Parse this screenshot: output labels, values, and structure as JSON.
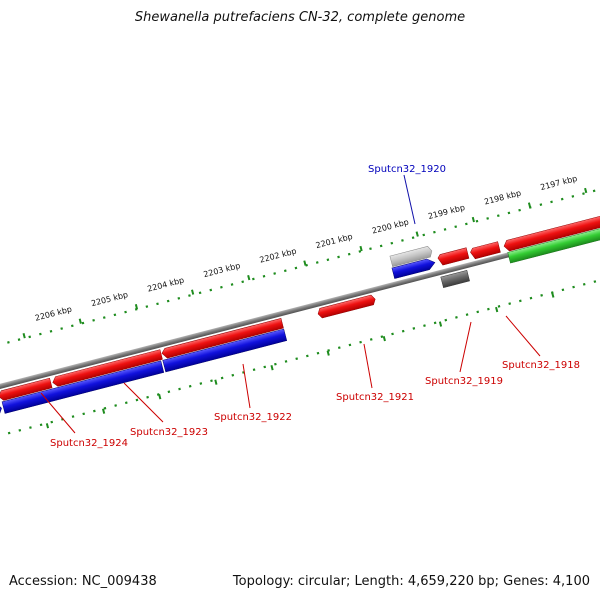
{
  "title": "Shewanella putrefaciens CN-32, complete genome",
  "footer": {
    "accession": "Accession: NC_009438",
    "summary": "Topology: circular; Length: 4,659,220 bp; Genes: 4,100"
  },
  "colors": {
    "backbone": "#7a7a7a",
    "ruler": "#1e8c1e",
    "forward_gene": "#ee1111",
    "reverse_gene": "#1111dd",
    "rna_gene": "#33cc33",
    "pseudo_gene_light": "#c8c8c8",
    "pseudo_gene_dark": "#666666",
    "label_red": "#cc0000",
    "label_blue": "#0000bb"
  },
  "ruler_labels": [
    "2197 kbp",
    "2198 kbp",
    "2199 kbp",
    "2200 kbp",
    "2201 kbp",
    "2202 kbp",
    "2203 kbp",
    "2204 kbp",
    "2205 kbp",
    "2206 kbp"
  ],
  "gene_labels": [
    {
      "text": "Sputcn32_1920",
      "color": "blue"
    },
    {
      "text": "Sputcn32_1918",
      "color": "red"
    },
    {
      "text": "Sputcn32_1919",
      "color": "red"
    },
    {
      "text": "Sputcn32_1921",
      "color": "red"
    },
    {
      "text": "Sputcn32_1922",
      "color": "red"
    },
    {
      "text": "Sputcn32_1923",
      "color": "red"
    },
    {
      "text": "Sputcn32_1924",
      "color": "red"
    }
  ]
}
